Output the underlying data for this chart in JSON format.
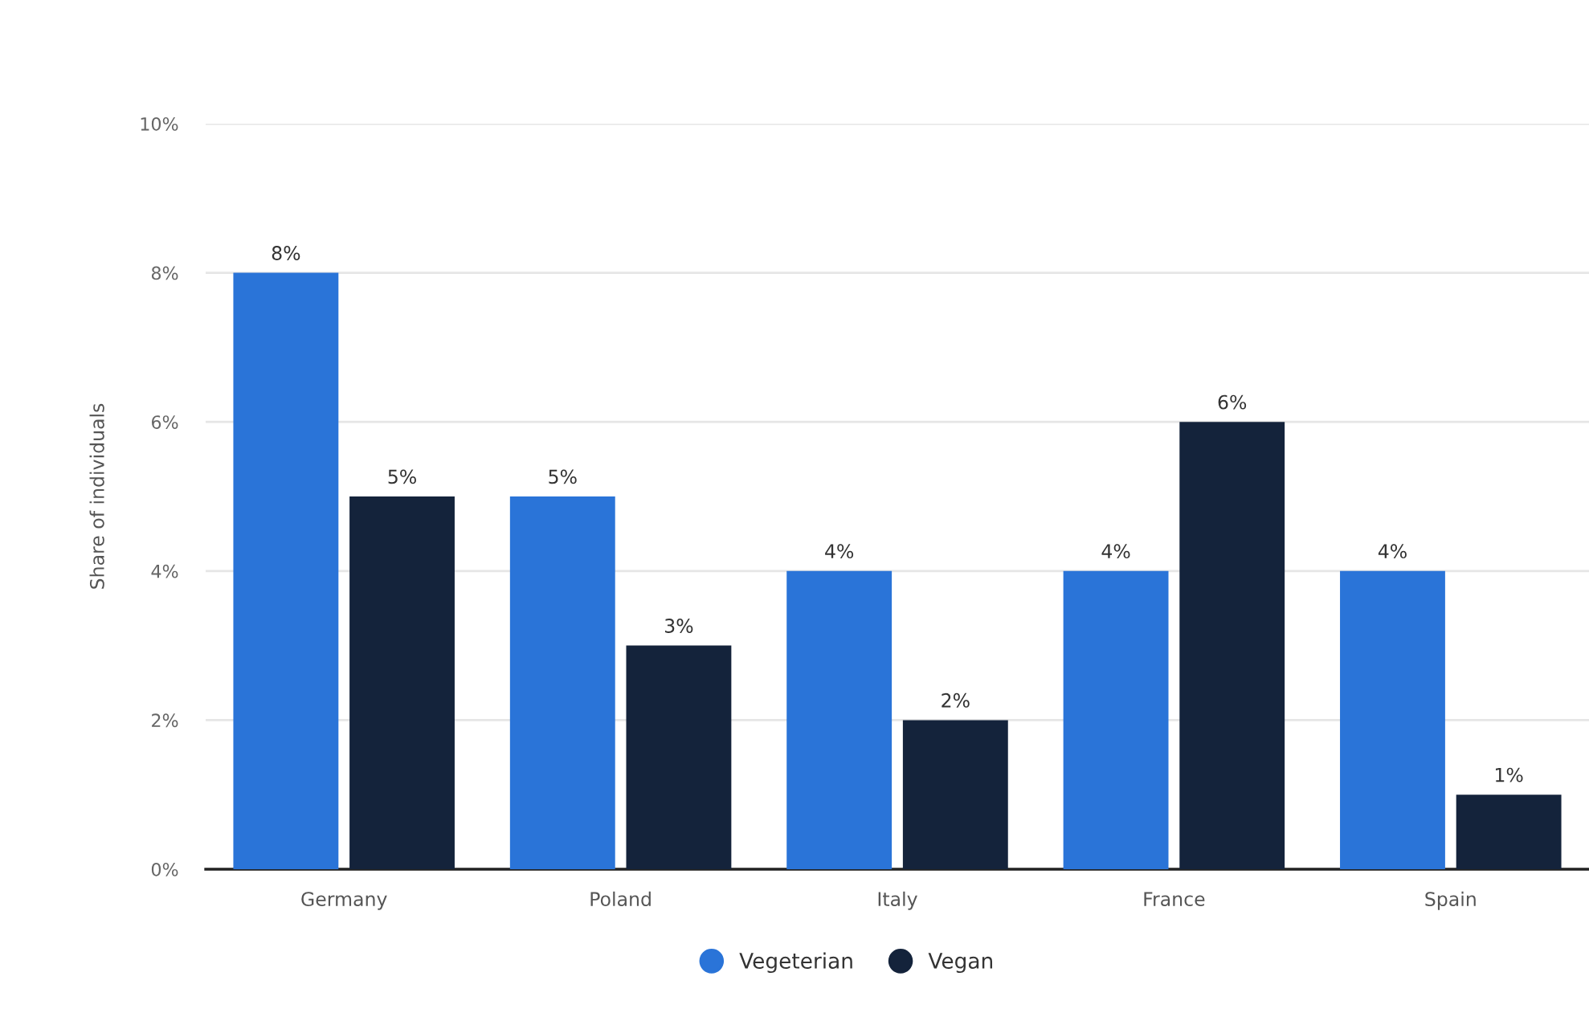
{
  "chart_data": {
    "type": "bar",
    "ylabel": "Share of individuals",
    "categories": [
      "Germany",
      "Poland",
      "Italy",
      "France",
      "Spain"
    ],
    "series": [
      {
        "name": "Vegeterian",
        "color": "#2a74d8",
        "values": [
          8,
          5,
          4,
          4,
          4
        ],
        "value_labels": [
          "8%",
          "5%",
          "4%",
          "4%",
          "4%"
        ]
      },
      {
        "name": "Vegan",
        "color": "#14233b",
        "values": [
          5,
          3,
          2,
          6,
          1
        ],
        "value_labels": [
          "5%",
          "3%",
          "2%",
          "6%",
          "1%"
        ]
      }
    ],
    "ylim": [
      0,
      10
    ],
    "yticks": [
      {
        "value": 0,
        "label": "0%"
      },
      {
        "value": 2,
        "label": "2%"
      },
      {
        "value": 4,
        "label": "4%"
      },
      {
        "value": 6,
        "label": "6%"
      },
      {
        "value": 8,
        "label": "8%"
      },
      {
        "value": 10,
        "label": "10%"
      }
    ],
    "grid": "y",
    "legend": "bottom"
  }
}
